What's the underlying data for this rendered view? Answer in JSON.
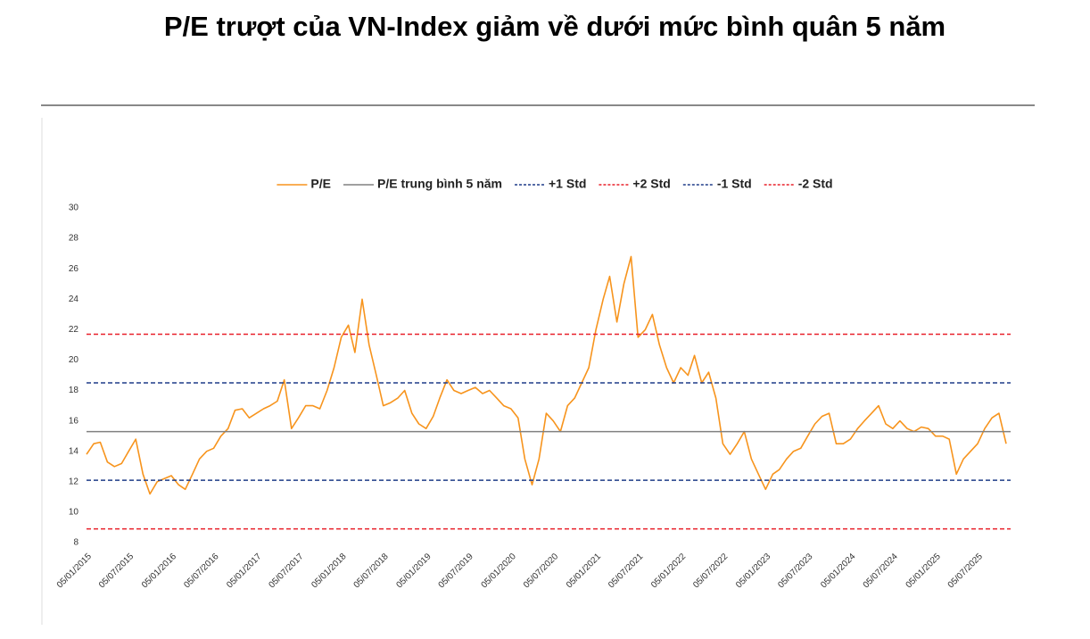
{
  "chart_data": {
    "type": "line",
    "title": "P/E trượt của VN-Index giảm về dưới mức bình quân 5 năm",
    "x": [
      "05/01/2015",
      "05/02/2015",
      "05/03/2015",
      "05/04/2015",
      "05/05/2015",
      "05/06/2015",
      "05/07/2015",
      "05/08/2015",
      "05/09/2015",
      "05/10/2015",
      "05/11/2015",
      "05/12/2015",
      "05/01/2016",
      "05/02/2016",
      "05/03/2016",
      "05/04/2016",
      "05/05/2016",
      "05/06/2016",
      "05/07/2016",
      "05/08/2016",
      "05/09/2016",
      "05/10/2016",
      "05/11/2016",
      "05/12/2016",
      "05/01/2017",
      "05/02/2017",
      "05/03/2017",
      "05/04/2017",
      "05/05/2017",
      "05/06/2017",
      "05/07/2017",
      "05/08/2017",
      "05/09/2017",
      "05/10/2017",
      "05/11/2017",
      "05/12/2017",
      "05/01/2018",
      "05/02/2018",
      "05/03/2018",
      "05/04/2018",
      "05/05/2018",
      "05/06/2018",
      "05/07/2018",
      "05/08/2018",
      "05/09/2018",
      "05/10/2018",
      "05/11/2018",
      "05/12/2018",
      "05/01/2019",
      "05/02/2019",
      "05/03/2019",
      "05/04/2019",
      "05/05/2019",
      "05/06/2019",
      "05/07/2019",
      "05/08/2019",
      "05/09/2019",
      "05/10/2019",
      "05/11/2019",
      "05/12/2019",
      "05/01/2020",
      "05/02/2020",
      "05/03/2020",
      "05/04/2020",
      "05/05/2020",
      "05/06/2020",
      "05/07/2020",
      "05/08/2020",
      "05/09/2020",
      "05/10/2020",
      "05/11/2020",
      "05/12/2020",
      "05/01/2021",
      "05/02/2021",
      "05/03/2021",
      "05/04/2021",
      "05/05/2021",
      "05/06/2021",
      "05/07/2021",
      "05/08/2021",
      "05/09/2021",
      "05/10/2021",
      "05/11/2021",
      "05/12/2021",
      "05/01/2022",
      "05/02/2022",
      "05/03/2022",
      "05/04/2022",
      "05/05/2022",
      "05/06/2022",
      "05/07/2022",
      "05/08/2022",
      "05/09/2022",
      "05/10/2022",
      "05/11/2022",
      "05/12/2022",
      "05/01/2023",
      "05/02/2023",
      "05/03/2023",
      "05/04/2023",
      "05/05/2023",
      "05/06/2023",
      "05/07/2023",
      "05/08/2023",
      "05/09/2023",
      "05/10/2023",
      "05/11/2023",
      "05/12/2023",
      "05/01/2024",
      "05/02/2024",
      "05/03/2024",
      "05/04/2024",
      "05/05/2024",
      "05/06/2024",
      "05/07/2024",
      "05/08/2024",
      "05/09/2024",
      "05/10/2024",
      "05/11/2024",
      "05/12/2024",
      "05/01/2025",
      "05/02/2025",
      "05/03/2025",
      "05/04/2025",
      "05/05/2025",
      "05/06/2025",
      "05/07/2025",
      "05/08/2025",
      "05/09/2025",
      "05/10/2025",
      "05/11/2025"
    ],
    "series": [
      {
        "name": "P/E",
        "color": "#f7941d",
        "values": [
          13.8,
          14.5,
          14.6,
          13.3,
          13.0,
          13.2,
          14.0,
          14.8,
          12.5,
          11.2,
          12.0,
          12.2,
          12.4,
          11.8,
          11.5,
          12.5,
          13.5,
          14.0,
          14.2,
          15.0,
          15.5,
          16.7,
          16.8,
          16.2,
          16.5,
          16.8,
          17.0,
          17.3,
          18.7,
          15.5,
          16.2,
          17.0,
          17.0,
          16.8,
          18.0,
          19.5,
          21.5,
          22.3,
          20.5,
          24.0,
          21.0,
          19.0,
          17.0,
          17.2,
          17.5,
          18.0,
          16.5,
          15.8,
          15.5,
          16.3,
          17.5,
          18.7,
          18.0,
          17.8,
          18.0,
          18.2,
          17.8,
          18.0,
          17.5,
          17.0,
          16.8,
          16.2,
          13.5,
          11.8,
          13.5,
          16.5,
          16.0,
          15.3,
          17.0,
          17.5,
          18.5,
          19.5,
          22.0,
          24.0,
          25.5,
          22.5,
          25.0,
          26.8,
          21.5,
          22.0,
          23.0,
          21.0,
          19.5,
          18.5,
          19.5,
          19.0,
          20.3,
          18.5,
          19.2,
          17.5,
          14.5,
          13.8,
          14.5,
          15.3,
          13.5,
          12.5,
          11.5,
          12.5,
          12.8,
          13.5,
          14.0,
          14.2,
          15.0,
          15.8,
          16.3,
          16.5,
          14.5,
          14.5,
          14.8,
          15.5,
          16.0,
          16.5,
          17.0,
          15.8,
          15.5,
          16.0,
          15.5,
          15.3,
          15.6,
          15.5,
          15.0,
          15.0,
          14.8,
          12.5,
          13.5,
          14.0,
          14.5,
          15.5,
          16.2,
          16.5,
          14.5
        ]
      },
      {
        "name": "P/E trung bình 5 năm",
        "color": "#808080",
        "value": 15.3
      },
      {
        "name": "+1 Std",
        "color": "#1f3c88",
        "dashed": true,
        "value": 18.5
      },
      {
        "name": "+2 Std",
        "color": "#e8202a",
        "dashed": true,
        "value": 21.7
      },
      {
        "name": "-1 Std",
        "color": "#1f3c88",
        "dashed": true,
        "value": 12.1
      },
      {
        "name": "-2 Std",
        "color": "#e8202a",
        "dashed": true,
        "value": 8.9
      }
    ],
    "xlim": [
      "05/01/2015",
      "05/11/2025"
    ],
    "xticks": [
      "05/01/2015",
      "05/07/2015",
      "05/01/2016",
      "05/07/2016",
      "05/01/2017",
      "05/07/2017",
      "05/01/2018",
      "05/07/2018",
      "05/01/2019",
      "05/07/2019",
      "05/01/2020",
      "05/07/2020",
      "05/01/2021",
      "05/07/2021",
      "05/01/2022",
      "05/07/2022",
      "05/01/2023",
      "05/07/2023",
      "05/01/2024",
      "05/07/2024",
      "05/01/2025",
      "05/07/2025"
    ],
    "ylim": [
      8,
      30
    ],
    "yticks": [
      8,
      10,
      12,
      14,
      16,
      18,
      20,
      22,
      24,
      26,
      28,
      30
    ],
    "legend": "top"
  }
}
